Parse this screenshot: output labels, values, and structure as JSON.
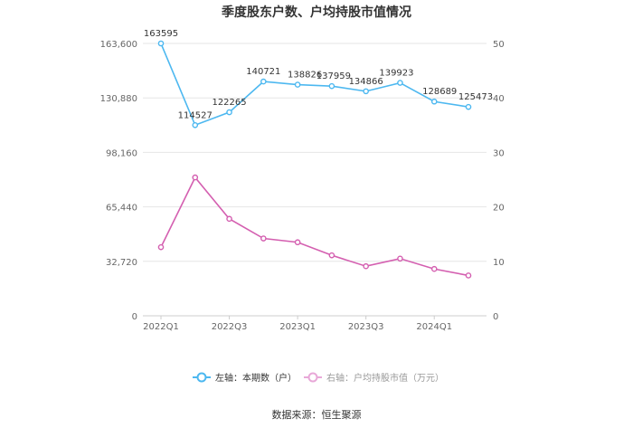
{
  "chart_data": {
    "type": "line",
    "title": "季度股东户数、户均持股市值情况",
    "categories": [
      "2022Q1",
      "2022Q2",
      "2022Q3",
      "2022Q4",
      "2023Q1",
      "2023Q2",
      "2023Q3",
      "2023Q4",
      "2024Q1",
      "2024Q2"
    ],
    "x_tick_labels": [
      "2022Q1",
      "2022Q3",
      "2023Q1",
      "2023Q3",
      "2024Q1"
    ],
    "left_axis": {
      "ticks": [
        "0",
        "32,720",
        "65,440",
        "98,160",
        "130,880",
        "163,600"
      ],
      "ylim": [
        0,
        163600
      ]
    },
    "right_axis": {
      "ticks": [
        "0",
        "10",
        "20",
        "30",
        "40",
        "50"
      ],
      "ylim": [
        0,
        50
      ]
    },
    "series": [
      {
        "name": "左轴：本期数（户）",
        "axis": "left",
        "color": "#4db8f0",
        "values": [
          163595,
          114527,
          122265,
          140721,
          138826,
          137959,
          134866,
          139923,
          128689,
          125473
        ],
        "labels": [
          "163595",
          "114527",
          "122265",
          "140721",
          "138826",
          "137959",
          "134866",
          "139923",
          "128689",
          "125473"
        ]
      },
      {
        "name": "右轴：户均持股市值（万元）",
        "axis": "right",
        "color": "#d45fb0",
        "values": [
          12.6,
          25.4,
          17.8,
          14.2,
          13.5,
          11.1,
          9.1,
          10.5,
          8.6,
          7.4
        ]
      }
    ],
    "grid": true,
    "legend_position": "bottom"
  },
  "source": "数据来源：恒生聚源"
}
